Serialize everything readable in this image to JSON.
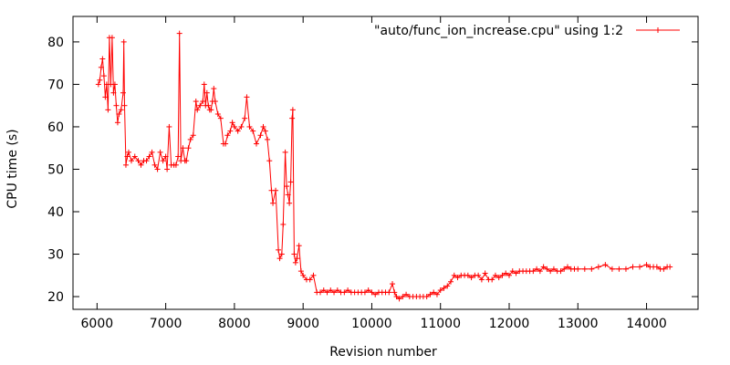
{
  "chart_data": {
    "type": "line",
    "title": "",
    "xlabel": "Revision number",
    "ylabel": "CPU time (s)",
    "xlim": [
      5650,
      14750
    ],
    "ylim": [
      17,
      86
    ],
    "x_ticks": [
      6000,
      7000,
      8000,
      9000,
      10000,
      11000,
      12000,
      13000,
      14000
    ],
    "y_ticks": [
      20,
      30,
      40,
      50,
      60,
      70,
      80
    ],
    "x_tick_labels": [
      "6000",
      "7000",
      "8000",
      "9000",
      "10000",
      "11000",
      "12000",
      "13000",
      "14000"
    ],
    "y_tick_labels": [
      "20",
      "30",
      "40",
      "50",
      "60",
      "70",
      "80"
    ],
    "grid": false,
    "legend": {
      "position": "top-right",
      "entries": [
        "\"auto/func_ion_increase.cpu\" using 1:2"
      ]
    },
    "series": [
      {
        "name": "\"auto/func_ion_increase.cpu\" using 1:2",
        "color": "#ff0000",
        "marker": "plus",
        "points": [
          [
            6020,
            70
          ],
          [
            6040,
            71
          ],
          [
            6060,
            74
          ],
          [
            6080,
            76
          ],
          [
            6100,
            72
          ],
          [
            6120,
            67
          ],
          [
            6140,
            70
          ],
          [
            6160,
            64
          ],
          [
            6180,
            81
          ],
          [
            6200,
            70
          ],
          [
            6220,
            81
          ],
          [
            6240,
            68
          ],
          [
            6260,
            70
          ],
          [
            6280,
            65
          ],
          [
            6300,
            61
          ],
          [
            6320,
            63
          ],
          [
            6350,
            64
          ],
          [
            6380,
            68
          ],
          [
            6390,
            80
          ],
          [
            6400,
            65
          ],
          [
            6420,
            51
          ],
          [
            6440,
            53
          ],
          [
            6460,
            54
          ],
          [
            6500,
            52
          ],
          [
            6550,
            53
          ],
          [
            6600,
            52
          ],
          [
            6640,
            51
          ],
          [
            6680,
            52
          ],
          [
            6720,
            52
          ],
          [
            6760,
            53
          ],
          [
            6800,
            54
          ],
          [
            6840,
            51
          ],
          [
            6880,
            50
          ],
          [
            6920,
            54
          ],
          [
            6960,
            52
          ],
          [
            7000,
            53
          ],
          [
            7020,
            50
          ],
          [
            7050,
            60
          ],
          [
            7080,
            51
          ],
          [
            7120,
            51
          ],
          [
            7150,
            51
          ],
          [
            7180,
            53
          ],
          [
            7200,
            82
          ],
          [
            7220,
            52
          ],
          [
            7250,
            55
          ],
          [
            7280,
            52
          ],
          [
            7300,
            52
          ],
          [
            7330,
            55
          ],
          [
            7360,
            57
          ],
          [
            7400,
            58
          ],
          [
            7440,
            66
          ],
          [
            7460,
            64
          ],
          [
            7500,
            65
          ],
          [
            7540,
            66
          ],
          [
            7560,
            70
          ],
          [
            7580,
            65
          ],
          [
            7600,
            68
          ],
          [
            7620,
            65
          ],
          [
            7640,
            64
          ],
          [
            7660,
            64
          ],
          [
            7680,
            66
          ],
          [
            7700,
            69
          ],
          [
            7720,
            66
          ],
          [
            7760,
            63
          ],
          [
            7800,
            62
          ],
          [
            7840,
            56
          ],
          [
            7870,
            56
          ],
          [
            7900,
            58
          ],
          [
            7940,
            59
          ],
          [
            7970,
            61
          ],
          [
            8000,
            60
          ],
          [
            8050,
            59
          ],
          [
            8100,
            60
          ],
          [
            8150,
            62
          ],
          [
            8180,
            67
          ],
          [
            8220,
            60
          ],
          [
            8270,
            59
          ],
          [
            8320,
            56
          ],
          [
            8380,
            58
          ],
          [
            8420,
            60
          ],
          [
            8450,
            59
          ],
          [
            8480,
            57
          ],
          [
            8510,
            52
          ],
          [
            8540,
            45
          ],
          [
            8560,
            42
          ],
          [
            8600,
            45
          ],
          [
            8640,
            31
          ],
          [
            8660,
            29
          ],
          [
            8690,
            30
          ],
          [
            8710,
            37
          ],
          [
            8740,
            54
          ],
          [
            8760,
            46
          ],
          [
            8780,
            44
          ],
          [
            8800,
            42
          ],
          [
            8820,
            47
          ],
          [
            8840,
            62
          ],
          [
            8850,
            64
          ],
          [
            8870,
            30
          ],
          [
            8890,
            28
          ],
          [
            8910,
            29
          ],
          [
            8940,
            32
          ],
          [
            8970,
            26
          ],
          [
            9000,
            25
          ],
          [
            9050,
            24
          ],
          [
            9100,
            24
          ],
          [
            9150,
            25
          ],
          [
            9200,
            21
          ],
          [
            9250,
            21
          ],
          [
            9300,
            21.5
          ],
          [
            9350,
            21
          ],
          [
            9400,
            21.5
          ],
          [
            9450,
            21
          ],
          [
            9500,
            21.5
          ],
          [
            9550,
            21
          ],
          [
            9600,
            21
          ],
          [
            9650,
            21.5
          ],
          [
            9700,
            21
          ],
          [
            9750,
            21
          ],
          [
            9800,
            21
          ],
          [
            9850,
            21
          ],
          [
            9900,
            21
          ],
          [
            9950,
            21.5
          ],
          [
            10000,
            21
          ],
          [
            10050,
            20.5
          ],
          [
            10100,
            21
          ],
          [
            10150,
            21
          ],
          [
            10200,
            21
          ],
          [
            10250,
            21
          ],
          [
            10300,
            23
          ],
          [
            10330,
            21
          ],
          [
            10360,
            20
          ],
          [
            10400,
            19.5
          ],
          [
            10450,
            20
          ],
          [
            10500,
            20.5
          ],
          [
            10550,
            20
          ],
          [
            10600,
            20
          ],
          [
            10650,
            20
          ],
          [
            10700,
            20
          ],
          [
            10750,
            20
          ],
          [
            10800,
            20
          ],
          [
            10850,
            20.5
          ],
          [
            10900,
            21
          ],
          [
            10950,
            20.5
          ],
          [
            11000,
            21.5
          ],
          [
            11050,
            22
          ],
          [
            11100,
            22.5
          ],
          [
            11150,
            23.5
          ],
          [
            11200,
            25
          ],
          [
            11250,
            24.5
          ],
          [
            11300,
            25
          ],
          [
            11350,
            25
          ],
          [
            11400,
            25
          ],
          [
            11450,
            24.5
          ],
          [
            11500,
            25
          ],
          [
            11550,
            25
          ],
          [
            11600,
            24
          ],
          [
            11650,
            25.5
          ],
          [
            11700,
            24
          ],
          [
            11750,
            24
          ],
          [
            11800,
            25
          ],
          [
            11850,
            24.5
          ],
          [
            11900,
            25
          ],
          [
            11950,
            25.5
          ],
          [
            12000,
            25
          ],
          [
            12050,
            26
          ],
          [
            12100,
            25.5
          ],
          [
            12150,
            26
          ],
          [
            12200,
            26
          ],
          [
            12250,
            26
          ],
          [
            12300,
            26
          ],
          [
            12350,
            26
          ],
          [
            12400,
            26.5
          ],
          [
            12450,
            26
          ],
          [
            12500,
            27
          ],
          [
            12550,
            26.5
          ],
          [
            12600,
            26
          ],
          [
            12650,
            26.5
          ],
          [
            12700,
            26
          ],
          [
            12750,
            26
          ],
          [
            12800,
            26.5
          ],
          [
            12850,
            27
          ],
          [
            12900,
            26.5
          ],
          [
            12950,
            26.5
          ],
          [
            13000,
            26.5
          ],
          [
            13100,
            26.5
          ],
          [
            13200,
            26.5
          ],
          [
            13300,
            27
          ],
          [
            13400,
            27.5
          ],
          [
            13500,
            26.5
          ],
          [
            13600,
            26.5
          ],
          [
            13700,
            26.5
          ],
          [
            13800,
            27
          ],
          [
            13900,
            27
          ],
          [
            14000,
            27.5
          ],
          [
            14050,
            27
          ],
          [
            14100,
            27
          ],
          [
            14150,
            27
          ],
          [
            14200,
            26.5
          ],
          [
            14250,
            26.5
          ],
          [
            14300,
            27
          ],
          [
            14340,
            27
          ]
        ]
      }
    ]
  }
}
